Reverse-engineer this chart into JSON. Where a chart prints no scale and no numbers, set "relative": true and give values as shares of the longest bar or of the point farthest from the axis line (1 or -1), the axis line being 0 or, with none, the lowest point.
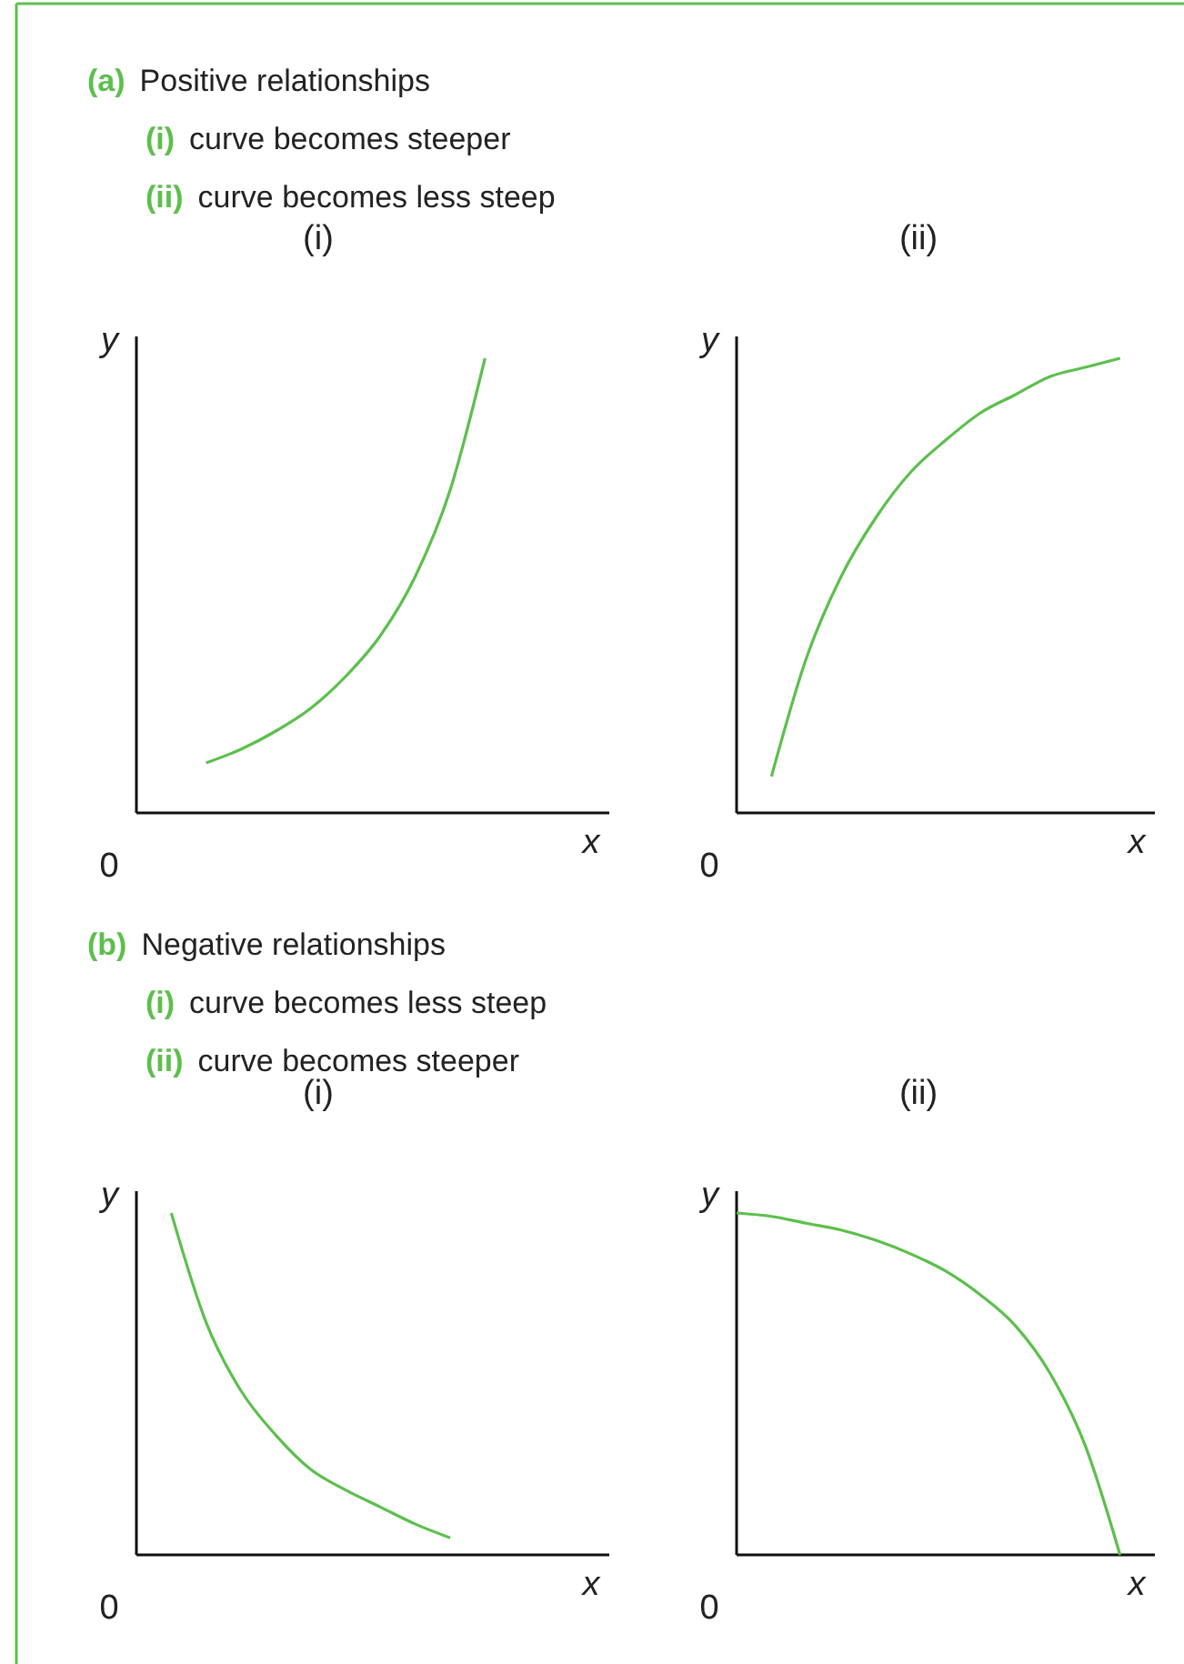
{
  "chart_data": [
    {
      "type": "line",
      "title": "(i)",
      "xlabel": "x",
      "ylabel": "y",
      "relative": true,
      "color": "#5cbf4c",
      "categories": [
        null,
        null,
        null,
        null,
        null,
        null,
        null,
        null,
        null,
        null,
        null,
        null,
        null
      ],
      "values": [
        null,
        null,
        0.11,
        0.14,
        0.18,
        0.23,
        0.3,
        0.39,
        0.52,
        0.71,
        1,
        null,
        null
      ],
      "annotations": [
        "(a) Positive relationships",
        "(i) curve becomes steeper",
        "(ii) curve becomes less steep",
        "0"
      ]
    },
    {
      "type": "line",
      "title": "(ii)",
      "xlabel": "x",
      "ylabel": "y",
      "relative": true,
      "color": "#5cbf4c",
      "categories": [
        null,
        null,
        null,
        null,
        null,
        null,
        null,
        null,
        null,
        null,
        null,
        null,
        null
      ],
      "values": [
        null,
        0.08,
        0.34,
        0.52,
        0.65,
        0.75,
        0.82,
        0.88,
        0.92,
        0.96,
        0.98,
        1,
        null
      ],
      "annotations": [
        "0"
      ]
    },
    {
      "type": "line",
      "title": "(i)",
      "xlabel": "x",
      "ylabel": "y",
      "relative": true,
      "color": "#5cbf4c",
      "categories": [
        null,
        null,
        null,
        null,
        null,
        null,
        null,
        null,
        null,
        null,
        null,
        null,
        null
      ],
      "values": [
        null,
        1,
        0.68,
        0.48,
        0.35,
        0.25,
        0.19,
        0.14,
        0.09,
        0.05,
        null,
        null,
        null
      ],
      "annotations": [
        "(b) Negative relationships",
        "(i) curve becomes less steep",
        "(ii) curve becomes steeper",
        "0"
      ]
    },
    {
      "type": "line",
      "title": "(ii)",
      "xlabel": "x",
      "ylabel": "y",
      "relative": true,
      "color": "#5cbf4c",
      "categories": [
        null,
        null,
        null,
        null,
        null,
        null,
        null,
        null,
        null,
        null,
        null,
        null,
        null
      ],
      "values": [
        1,
        0.99,
        0.97,
        0.95,
        0.92,
        0.88,
        0.83,
        0.76,
        0.67,
        0.53,
        0.32,
        0,
        null
      ],
      "annotations": [
        "0"
      ]
    }
  ]
}
